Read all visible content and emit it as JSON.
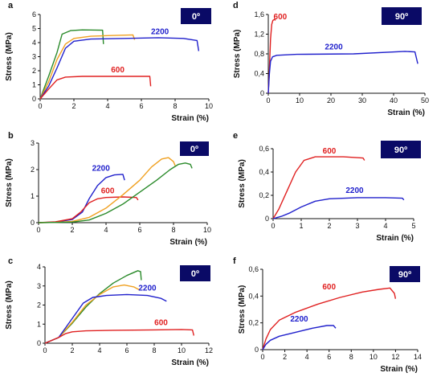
{
  "chart_data": [
    {
      "panel": "a",
      "badge": "0º",
      "type": "line",
      "xlabel": "Strain (%)",
      "ylabel": "Stress (MPa)",
      "xlim": [
        0,
        10
      ],
      "ylim": [
        0,
        6
      ],
      "xticks": [
        "0",
        "2",
        "4",
        "6",
        "8",
        "10"
      ],
      "yticks": [
        "0",
        "1",
        "2",
        "3",
        "4",
        "5",
        "6"
      ],
      "series": [
        {
          "color": "#2a8a2a",
          "points": [
            [
              0,
              0
            ],
            [
              0.5,
              1.6
            ],
            [
              1,
              3.3
            ],
            [
              1.3,
              4.6
            ],
            [
              1.8,
              4.85
            ],
            [
              2.5,
              4.9
            ],
            [
              3.7,
              4.88
            ],
            [
              3.75,
              3.9
            ]
          ]
        },
        {
          "color": "#f0a020",
          "points": [
            [
              0,
              0
            ],
            [
              0.5,
              1.2
            ],
            [
              1,
              2.8
            ],
            [
              1.5,
              3.9
            ],
            [
              2,
              4.3
            ],
            [
              3,
              4.45
            ],
            [
              4,
              4.5
            ],
            [
              5.5,
              4.55
            ],
            [
              5.6,
              4.2
            ]
          ]
        },
        {
          "name": "2200",
          "color": "#2020cc",
          "points": [
            [
              0,
              0
            ],
            [
              0.5,
              0.9
            ],
            [
              1,
              2.2
            ],
            [
              1.5,
              3.6
            ],
            [
              2,
              4.1
            ],
            [
              3,
              4.25
            ],
            [
              5,
              4.3
            ],
            [
              7,
              4.35
            ],
            [
              8.5,
              4.3
            ],
            [
              9.3,
              4.15
            ],
            [
              9.4,
              3.4
            ]
          ]
        },
        {
          "name": "600",
          "color": "#e02020",
          "points": [
            [
              0,
              0
            ],
            [
              0.5,
              0.7
            ],
            [
              1,
              1.35
            ],
            [
              1.5,
              1.55
            ],
            [
              2.5,
              1.6
            ],
            [
              4,
              1.6
            ],
            [
              6.5,
              1.6
            ],
            [
              6.55,
              0.9
            ]
          ]
        }
      ],
      "annotations": [
        {
          "text": "2200",
          "x": 7.1,
          "y": 4.6,
          "color": "#2020cc"
        },
        {
          "text": "600",
          "x": 4.6,
          "y": 1.9,
          "color": "#e02020"
        }
      ]
    },
    {
      "panel": "d",
      "badge": "90º",
      "type": "line",
      "xlabel": "Strain (%)",
      "ylabel": "Stress (MPa)",
      "xlim": [
        0,
        55
      ],
      "ylim": [
        0,
        1.6
      ],
      "xticks": [
        "0",
        "10",
        "20",
        "30",
        "40",
        "50"
      ],
      "yticks": [
        "0",
        "0,4",
        "0,8",
        "1,2",
        "1,6"
      ],
      "yticks_values": [
        0,
        0.4,
        0.8,
        1.2,
        1.6
      ],
      "series": [
        {
          "name": "600",
          "color": "#e02020",
          "points": [
            [
              0,
              0
            ],
            [
              0.4,
              0.5
            ],
            [
              0.8,
              1.1
            ],
            [
              1.2,
              1.4
            ],
            [
              1.6,
              1.48
            ],
            [
              2.2,
              1.5
            ],
            [
              2.5,
              1.48
            ]
          ]
        },
        {
          "name": "2200",
          "color": "#2020cc",
          "points": [
            [
              0,
              0
            ],
            [
              0.4,
              0.4
            ],
            [
              0.8,
              0.65
            ],
            [
              1.5,
              0.74
            ],
            [
              3,
              0.77
            ],
            [
              10,
              0.79
            ],
            [
              30,
              0.8
            ],
            [
              48,
              0.85
            ],
            [
              51.5,
              0.84
            ],
            [
              52.5,
              0.6
            ]
          ]
        }
      ],
      "annotations": [
        {
          "text": "600",
          "x": 4.2,
          "y": 1.5,
          "color": "#e02020"
        },
        {
          "text": "2200",
          "x": 23,
          "y": 0.89,
          "color": "#2020cc"
        }
      ]
    },
    {
      "panel": "b",
      "badge": "0º",
      "type": "line",
      "xlabel": "Strain (%)",
      "ylabel": "Stress (MPa)",
      "xlim": [
        0,
        10
      ],
      "ylim": [
        0,
        3
      ],
      "xticks": [
        "0",
        "2",
        "4",
        "6",
        "8",
        "10"
      ],
      "yticks": [
        "0",
        "1",
        "2",
        "3"
      ],
      "series": [
        {
          "name": "2200",
          "color": "#2020cc",
          "points": [
            [
              0,
              0
            ],
            [
              1,
              0.02
            ],
            [
              2,
              0.12
            ],
            [
              2.6,
              0.4
            ],
            [
              3,
              0.9
            ],
            [
              3.5,
              1.4
            ],
            [
              4,
              1.7
            ],
            [
              4.5,
              1.8
            ],
            [
              5,
              1.82
            ],
            [
              5.1,
              1.6
            ]
          ]
        },
        {
          "name": "600",
          "color": "#e02020",
          "points": [
            [
              0,
              0
            ],
            [
              1,
              0.03
            ],
            [
              2,
              0.15
            ],
            [
              2.5,
              0.4
            ],
            [
              3,
              0.75
            ],
            [
              3.5,
              0.9
            ],
            [
              4,
              0.95
            ],
            [
              5,
              0.97
            ],
            [
              5.8,
              0.95
            ],
            [
              5.9,
              0.85
            ]
          ]
        },
        {
          "color": "#f0a020",
          "points": [
            [
              0,
              0
            ],
            [
              1,
              0.01
            ],
            [
              2,
              0.05
            ],
            [
              3,
              0.2
            ],
            [
              4,
              0.55
            ],
            [
              5,
              1.05
            ],
            [
              6,
              1.6
            ],
            [
              6.7,
              2.1
            ],
            [
              7.3,
              2.4
            ],
            [
              7.7,
              2.45
            ],
            [
              8,
              2.3
            ],
            [
              8.1,
              2.15
            ]
          ]
        },
        {
          "color": "#2a8a2a",
          "points": [
            [
              0,
              0
            ],
            [
              2,
              0.02
            ],
            [
              3,
              0.1
            ],
            [
              4,
              0.35
            ],
            [
              5,
              0.7
            ],
            [
              6,
              1.15
            ],
            [
              7,
              1.6
            ],
            [
              7.8,
              2.0
            ],
            [
              8.3,
              2.2
            ],
            [
              8.7,
              2.25
            ],
            [
              9,
              2.2
            ],
            [
              9.1,
              2.05
            ]
          ]
        }
      ],
      "annotations": [
        {
          "text": "2200",
          "x": 3.7,
          "y": 1.95,
          "color": "#2020cc"
        },
        {
          "text": "600",
          "x": 4.1,
          "y": 1.1,
          "color": "#e02020"
        }
      ]
    },
    {
      "panel": "e",
      "badge": "90º",
      "type": "line",
      "xlabel": "Strain (%)",
      "ylabel": "Stress (MPa)",
      "xlim": [
        0,
        5
      ],
      "ylim": [
        0,
        0.6
      ],
      "xticks": [
        "0",
        "1",
        "2",
        "3",
        "4",
        "5"
      ],
      "yticks": [
        "0",
        "0,2",
        "0,4",
        "0,6"
      ],
      "yticks_values": [
        0,
        0.2,
        0.4,
        0.6
      ],
      "series": [
        {
          "name": "600",
          "color": "#e02020",
          "points": [
            [
              0,
              0
            ],
            [
              0.2,
              0.08
            ],
            [
              0.5,
              0.24
            ],
            [
              0.8,
              0.4
            ],
            [
              1.1,
              0.5
            ],
            [
              1.5,
              0.53
            ],
            [
              2.5,
              0.53
            ],
            [
              3.2,
              0.52
            ],
            [
              3.25,
              0.5
            ]
          ]
        },
        {
          "name": "2200",
          "color": "#2020cc",
          "points": [
            [
              0,
              0
            ],
            [
              0.3,
              0.02
            ],
            [
              0.6,
              0.05
            ],
            [
              1,
              0.1
            ],
            [
              1.5,
              0.15
            ],
            [
              2,
              0.17
            ],
            [
              3,
              0.18
            ],
            [
              4,
              0.18
            ],
            [
              4.6,
              0.175
            ],
            [
              4.65,
              0.16
            ]
          ]
        }
      ],
      "annotations": [
        {
          "text": "600",
          "x": 2.0,
          "y": 0.56,
          "color": "#e02020"
        },
        {
          "text": "2200",
          "x": 2.9,
          "y": 0.22,
          "color": "#2020cc"
        }
      ]
    },
    {
      "panel": "c",
      "badge": "0º",
      "type": "line",
      "xlabel": "Strain (%)",
      "ylabel": "Stress (MPa)",
      "xlim": [
        0,
        12
      ],
      "ylim": [
        0,
        4
      ],
      "xticks": [
        "0",
        "2",
        "4",
        "6",
        "8",
        "10",
        "12"
      ],
      "yticks": [
        "0",
        "1",
        "2",
        "3",
        "4"
      ],
      "series": [
        {
          "color": "#2a8a2a",
          "points": [
            [
              0,
              0
            ],
            [
              1,
              0.3
            ],
            [
              2,
              1.05
            ],
            [
              3,
              1.9
            ],
            [
              4,
              2.6
            ],
            [
              5,
              3.15
            ],
            [
              6,
              3.55
            ],
            [
              6.8,
              3.8
            ],
            [
              7,
              3.75
            ],
            [
              7.05,
              3.3
            ]
          ]
        },
        {
          "color": "#f0a020",
          "points": [
            [
              0,
              0
            ],
            [
              1,
              0.3
            ],
            [
              2,
              1.1
            ],
            [
              3,
              2.0
            ],
            [
              4,
              2.55
            ],
            [
              5,
              2.95
            ],
            [
              5.8,
              3.05
            ],
            [
              6.5,
              2.95
            ],
            [
              6.9,
              2.8
            ]
          ]
        },
        {
          "name": "2200",
          "color": "#2020cc",
          "points": [
            [
              0,
              0
            ],
            [
              1,
              0.3
            ],
            [
              2,
              1.3
            ],
            [
              2.8,
              2.1
            ],
            [
              3.5,
              2.4
            ],
            [
              4.5,
              2.5
            ],
            [
              6,
              2.55
            ],
            [
              7.5,
              2.5
            ],
            [
              8.5,
              2.35
            ],
            [
              8.9,
              2.2
            ]
          ]
        },
        {
          "name": "600",
          "color": "#e02020",
          "points": [
            [
              0,
              0
            ],
            [
              1,
              0.3
            ],
            [
              1.5,
              0.5
            ],
            [
              2,
              0.6
            ],
            [
              3,
              0.65
            ],
            [
              5,
              0.68
            ],
            [
              8,
              0.7
            ],
            [
              10,
              0.72
            ],
            [
              10.8,
              0.7
            ],
            [
              10.9,
              0.4
            ]
          ]
        }
      ],
      "annotations": [
        {
          "text": "2200",
          "x": 7.5,
          "y": 2.75,
          "color": "#2020cc"
        },
        {
          "text": "600",
          "x": 8.5,
          "y": 0.95,
          "color": "#e02020"
        }
      ]
    },
    {
      "panel": "f",
      "badge": "90º",
      "type": "line",
      "xlabel": "Strain (%)",
      "ylabel": "Stress (MPa)",
      "xlim": [
        0,
        14
      ],
      "ylim": [
        0,
        0.6
      ],
      "xticks": [
        "0",
        "2",
        "4",
        "6",
        "8",
        "10",
        "12",
        "14"
      ],
      "yticks": [
        "0",
        "0,2",
        "0,4",
        "0,6"
      ],
      "yticks_values": [
        0,
        0.2,
        0.4,
        0.6
      ],
      "series": [
        {
          "name": "600",
          "color": "#e02020",
          "points": [
            [
              0,
              0
            ],
            [
              0.3,
              0.08
            ],
            [
              0.7,
              0.15
            ],
            [
              1.5,
              0.22
            ],
            [
              3,
              0.28
            ],
            [
              5,
              0.34
            ],
            [
              7,
              0.39
            ],
            [
              9,
              0.43
            ],
            [
              10.5,
              0.45
            ],
            [
              11.5,
              0.46
            ],
            [
              11.9,
              0.42
            ],
            [
              12,
              0.38
            ]
          ]
        },
        {
          "name": "2200",
          "color": "#2020cc",
          "points": [
            [
              0,
              0
            ],
            [
              0.3,
              0.04
            ],
            [
              0.7,
              0.07
            ],
            [
              1.5,
              0.1
            ],
            [
              3,
              0.13
            ],
            [
              4.5,
              0.16
            ],
            [
              5.8,
              0.18
            ],
            [
              6.4,
              0.18
            ],
            [
              6.6,
              0.16
            ]
          ]
        }
      ],
      "annotations": [
        {
          "text": "600",
          "x": 6.0,
          "y": 0.45,
          "color": "#e02020"
        },
        {
          "text": "2200",
          "x": 3.3,
          "y": 0.21,
          "color": "#2020cc"
        }
      ]
    }
  ]
}
